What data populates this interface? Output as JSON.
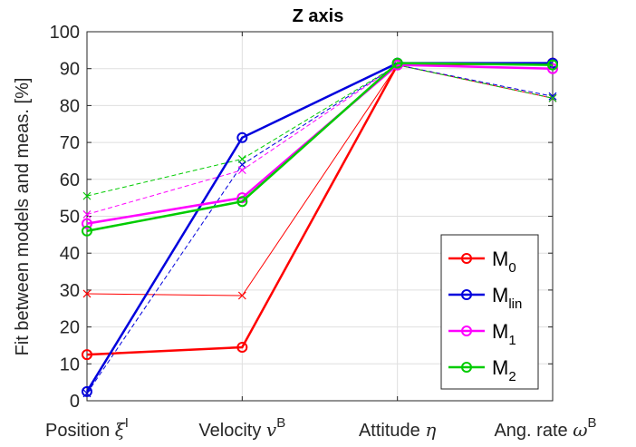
{
  "chart_data": {
    "type": "line",
    "title": "Z axis",
    "ylabel": "Fit between models and meas. [%]",
    "xlabel": "",
    "categories": [
      {
        "main": "Position ",
        "sym": "ξ",
        "sup": "I"
      },
      {
        "main": "Velocity ",
        "sym": "v",
        "sup": "B"
      },
      {
        "main": "Attitude ",
        "sym": "η",
        "sup": ""
      },
      {
        "main": "Ang. rate ",
        "sym": "ω",
        "sup": "B"
      }
    ],
    "ylim": [
      0,
      100
    ],
    "yticks": [
      0,
      10,
      20,
      30,
      40,
      50,
      60,
      70,
      80,
      90,
      100
    ],
    "grid": true,
    "legend_position": "bottom-right",
    "series": [
      {
        "name": "M",
        "sub": "0",
        "color": "#ff0000",
        "values": [
          12.5,
          14.5,
          91.0,
          91.5
        ]
      },
      {
        "name": "M",
        "sub": "lin",
        "color": "#0000dd",
        "values": [
          2.5,
          71.3,
          91.5,
          91.5
        ]
      },
      {
        "name": "M",
        "sub": "1",
        "color": "#ff00ff",
        "values": [
          48.0,
          55.0,
          91.0,
          90.0
        ]
      },
      {
        "name": "M",
        "sub": "2",
        "color": "#00cc00",
        "values": [
          46.0,
          54.0,
          91.5,
          91.0
        ]
      }
    ],
    "reference_series": [
      {
        "color": "#ff0000",
        "style": "thin-solid-x",
        "values": [
          29.0,
          28.5,
          91.0,
          82.0
        ]
      },
      {
        "color": "#0000dd",
        "style": "dashed-x",
        "values": [
          2.0,
          64.0,
          91.0,
          82.5
        ]
      },
      {
        "color": "#ff00ff",
        "style": "dashed-x",
        "values": [
          50.5,
          62.5,
          91.0,
          82.0
        ]
      },
      {
        "color": "#00cc00",
        "style": "dashed-x",
        "values": [
          55.5,
          65.5,
          91.0,
          82.0
        ]
      }
    ]
  }
}
